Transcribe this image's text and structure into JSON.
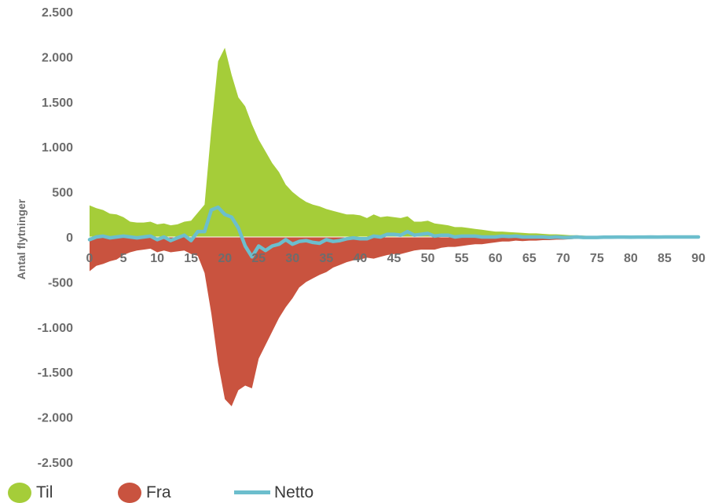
{
  "chart_data": {
    "type": "area",
    "ylabel": "Antal flytninger",
    "xlabel": "",
    "xlim": [
      0,
      90
    ],
    "ylim": [
      -2500,
      2500
    ],
    "x_ticks": [
      0,
      5,
      10,
      15,
      20,
      25,
      30,
      35,
      40,
      45,
      50,
      55,
      60,
      65,
      70,
      75,
      80,
      85,
      90
    ],
    "y_ticks": [
      2500,
      2000,
      1500,
      1000,
      500,
      0,
      -500,
      -1000,
      -1500,
      -2000,
      -2500
    ],
    "y_tick_labels": [
      "2.500",
      "2.000",
      "1.500",
      "1.000",
      "500",
      "0",
      "-500",
      "-1.000",
      "-1.500",
      "-2.000",
      "-2.500"
    ],
    "x": [
      0,
      1,
      2,
      3,
      4,
      5,
      6,
      7,
      8,
      9,
      10,
      11,
      12,
      13,
      14,
      15,
      16,
      17,
      18,
      19,
      20,
      21,
      22,
      23,
      24,
      25,
      26,
      27,
      28,
      29,
      30,
      31,
      32,
      33,
      34,
      35,
      36,
      37,
      38,
      39,
      40,
      41,
      42,
      43,
      44,
      45,
      46,
      47,
      48,
      49,
      50,
      51,
      52,
      53,
      54,
      55,
      56,
      57,
      58,
      59,
      60,
      61,
      62,
      63,
      64,
      65,
      66,
      67,
      68,
      69,
      70,
      71,
      72,
      73,
      74,
      75,
      76,
      77,
      78,
      79,
      80,
      81,
      82,
      83,
      84,
      85,
      86,
      87,
      88,
      89,
      90
    ],
    "series": [
      {
        "name": "Til",
        "color": "#a5cd39",
        "style": "area",
        "values": [
          350,
          320,
          300,
          260,
          250,
          220,
          170,
          160,
          160,
          170,
          140,
          150,
          130,
          140,
          170,
          180,
          270,
          360,
          1200,
          1950,
          2100,
          1800,
          1550,
          1450,
          1250,
          1080,
          950,
          820,
          720,
          580,
          500,
          440,
          390,
          360,
          340,
          310,
          290,
          270,
          250,
          250,
          240,
          210,
          250,
          220,
          230,
          220,
          210,
          230,
          170,
          170,
          180,
          150,
          140,
          130,
          110,
          110,
          100,
          90,
          80,
          70,
          60,
          60,
          55,
          50,
          45,
          40,
          40,
          35,
          30,
          30,
          25,
          20,
          20,
          15,
          10,
          10,
          8,
          6,
          5,
          4,
          3,
          3,
          2,
          2,
          1,
          1,
          1,
          0,
          0,
          0,
          0
        ]
      },
      {
        "name": "Fra",
        "color": "#c9533f",
        "style": "area",
        "values": [
          -380,
          -320,
          -300,
          -270,
          -250,
          -200,
          -170,
          -150,
          -140,
          -130,
          -170,
          -150,
          -170,
          -160,
          -150,
          -190,
          -210,
          -400,
          -850,
          -1400,
          -1800,
          -1880,
          -1700,
          -1650,
          -1680,
          -1350,
          -1200,
          -1050,
          -900,
          -780,
          -680,
          -560,
          -500,
          -460,
          -420,
          -390,
          -340,
          -310,
          -280,
          -260,
          -250,
          -230,
          -240,
          -220,
          -200,
          -190,
          -190,
          -170,
          -150,
          -140,
          -140,
          -140,
          -120,
          -110,
          -110,
          -100,
          -90,
          -80,
          -80,
          -70,
          -60,
          -50,
          -50,
          -40,
          -45,
          -40,
          -40,
          -35,
          -35,
          -30,
          -30,
          -25,
          -20,
          -20,
          -15,
          -15,
          -10,
          -8,
          -6,
          -5,
          -5,
          -4,
          -3,
          -2,
          -2,
          -1,
          -1,
          0,
          0,
          0,
          0
        ]
      },
      {
        "name": "Netto",
        "color": "#6cbecd",
        "style": "line",
        "values": [
          -30,
          0,
          10,
          -10,
          0,
          10,
          0,
          -10,
          0,
          10,
          -30,
          0,
          -40,
          -10,
          20,
          -40,
          60,
          60,
          300,
          330,
          250,
          220,
          100,
          -100,
          -220,
          -100,
          -150,
          -100,
          -80,
          -30,
          -80,
          -50,
          -40,
          -60,
          -70,
          -30,
          -50,
          -40,
          -20,
          -10,
          -20,
          -20,
          10,
          0,
          30,
          30,
          20,
          60,
          20,
          30,
          40,
          10,
          20,
          20,
          0,
          10,
          10,
          10,
          0,
          0,
          0,
          10,
          5,
          10,
          0,
          0,
          0,
          0,
          -5,
          0,
          -5,
          -5,
          0,
          -5,
          -5,
          -5,
          -2,
          -2,
          -1,
          -1,
          -2,
          -1,
          -1,
          0,
          -1,
          0,
          0,
          0,
          0,
          0,
          0
        ]
      }
    ],
    "legend_position": "bottom-left",
    "grid": false
  },
  "legend": {
    "items": [
      {
        "label": "Til",
        "color": "#a5cd39",
        "kind": "dot"
      },
      {
        "label": "Fra",
        "color": "#c9533f",
        "kind": "dot"
      },
      {
        "label": "Netto",
        "color": "#6cbecd",
        "kind": "line"
      }
    ]
  }
}
